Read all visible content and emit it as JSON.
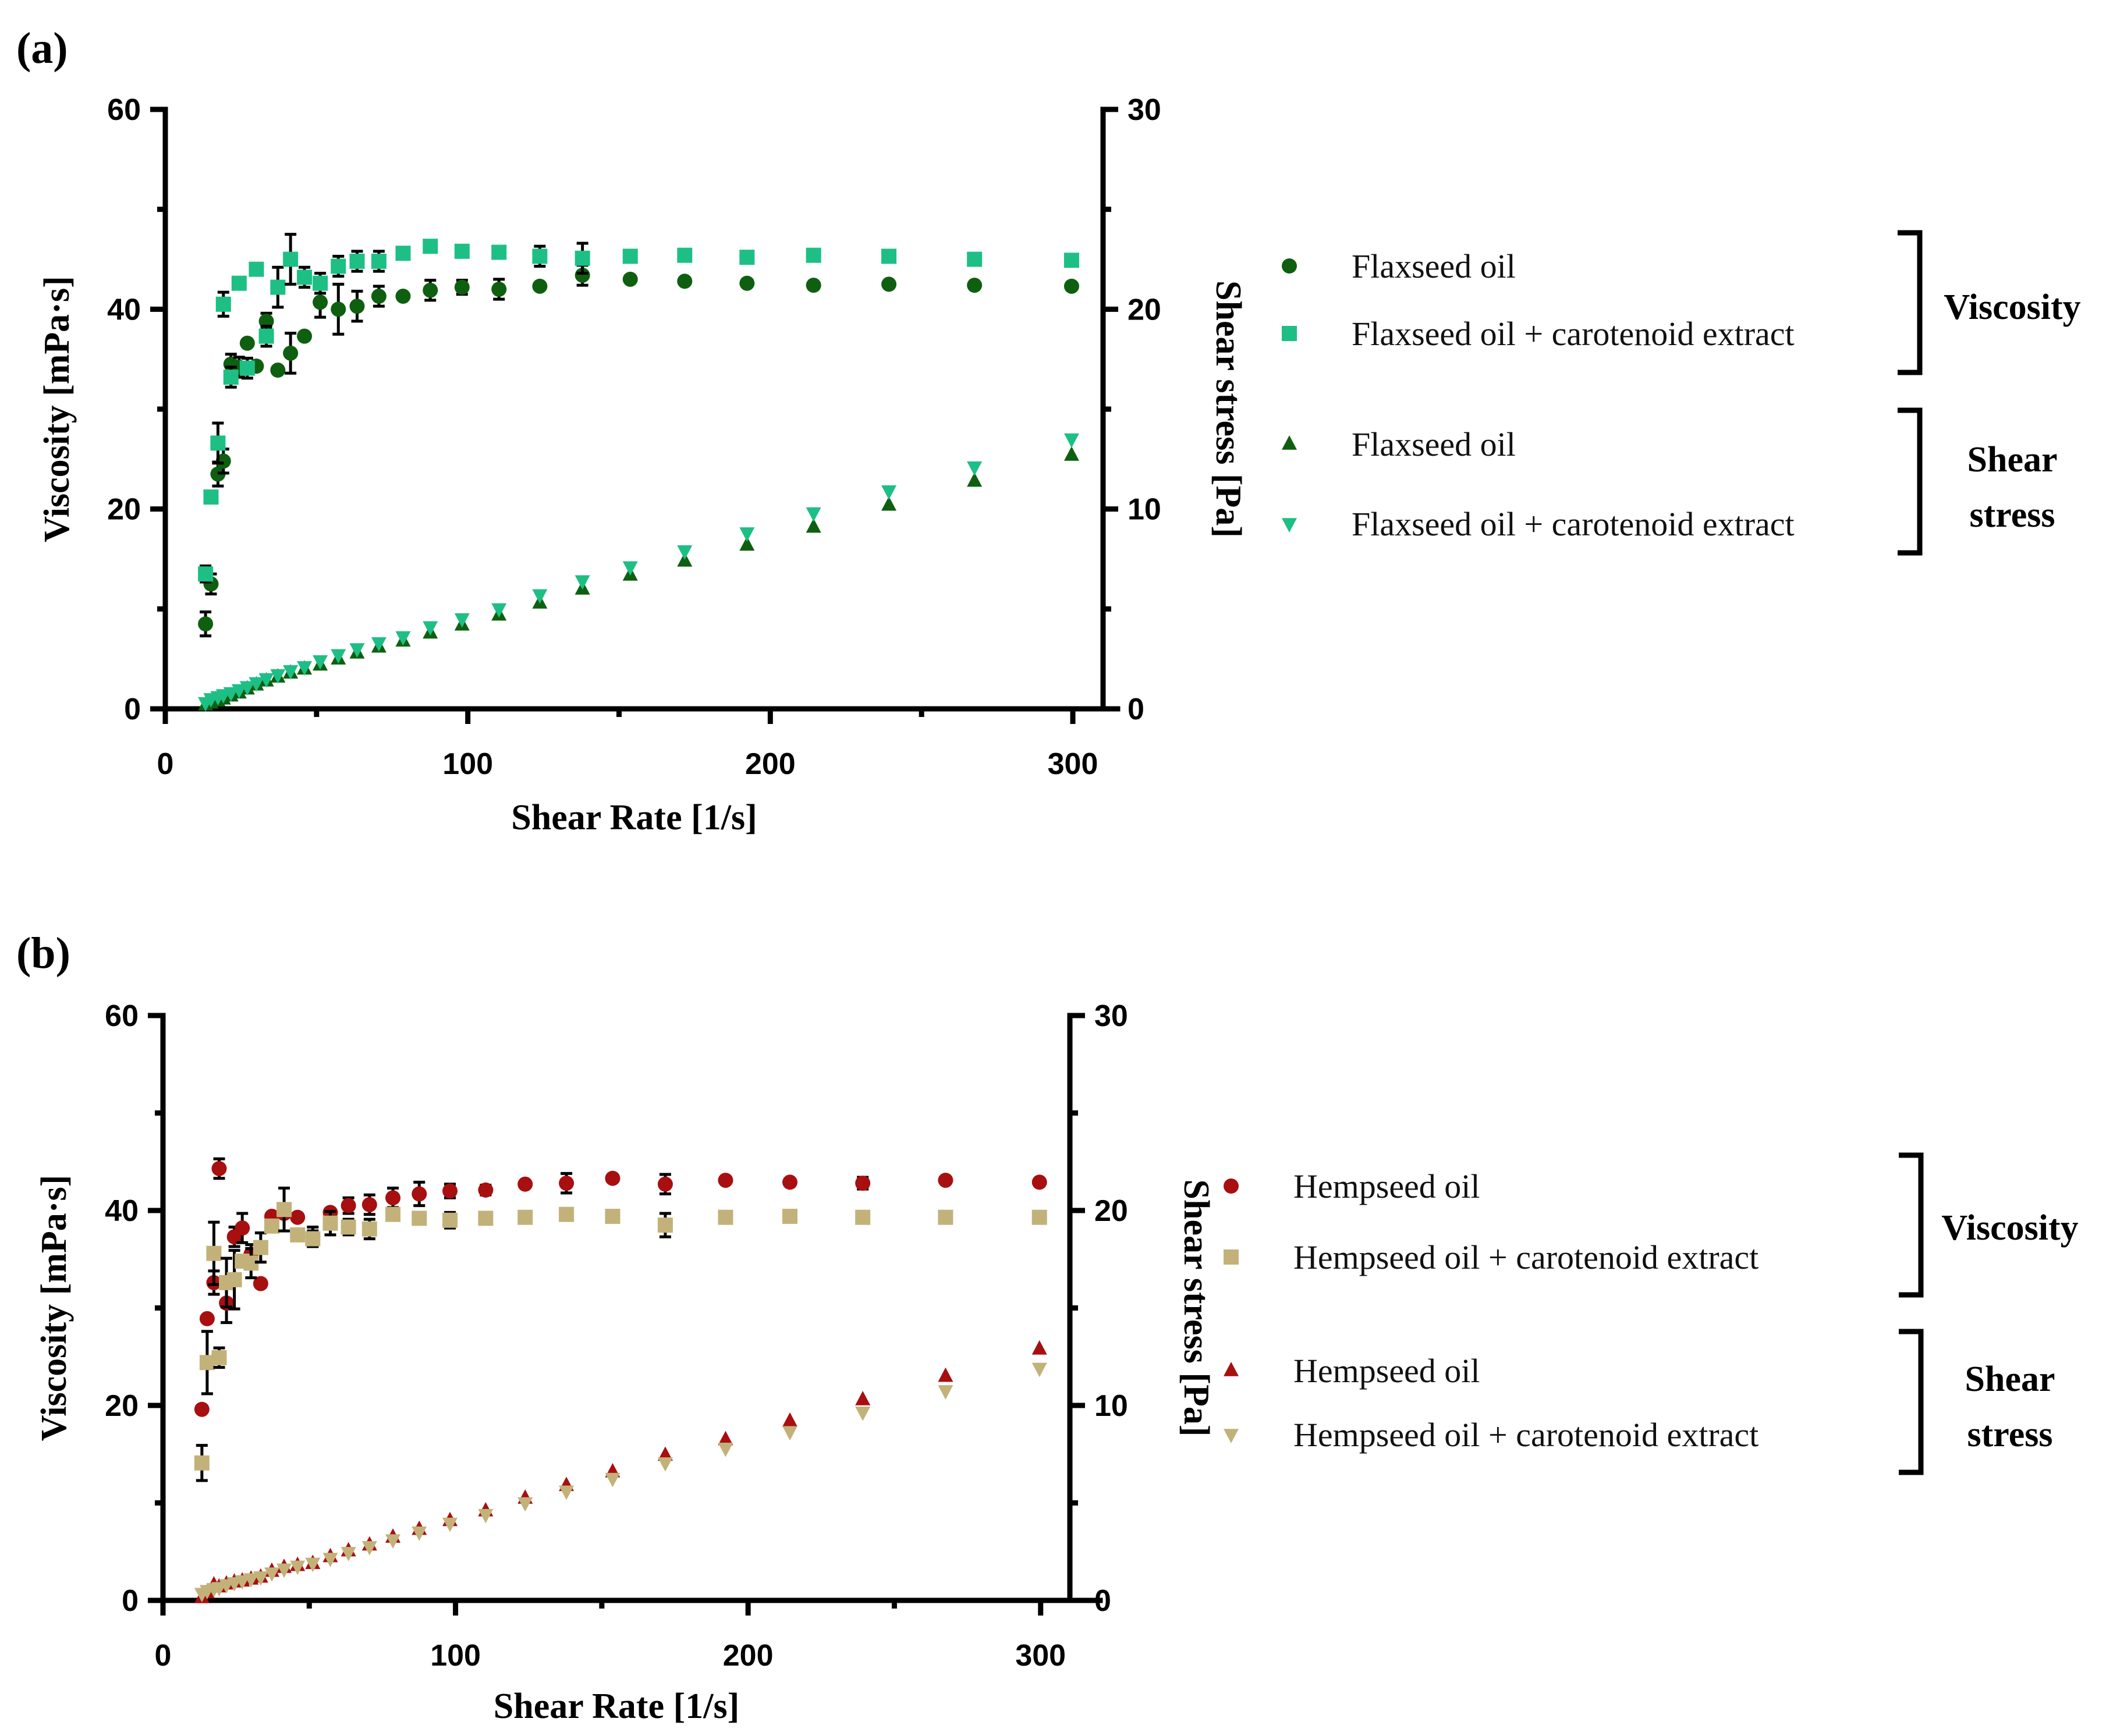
{
  "colors": {
    "flax_oil": "#0f5f10",
    "flax_extract": "#1dbf85",
    "hemp_oil": "#a80f10",
    "hemp_extract": "#c2b27a"
  },
  "chart_data": [
    {
      "type": "scatter",
      "panel_label": "(a)",
      "xlabel": "Shear Rate [1/s]",
      "ylabel": "Viscosity [mPa·s]",
      "y2label": "Shear stress [Pa]",
      "xlim": [
        0,
        310
      ],
      "ylim": [
        0,
        60
      ],
      "y2lim": [
        0,
        30
      ],
      "xticks": [
        "0",
        "100",
        "200",
        "300"
      ],
      "yticks": [
        "0",
        "20",
        "40",
        "60"
      ],
      "y2ticks": [
        "0",
        "10",
        "20",
        "30"
      ],
      "legend": {
        "position": "right",
        "groups": [
          {
            "name": "Viscosity",
            "entries": [
              {
                "label": "Flaxseed oil",
                "marker": "circle",
                "color_key": "flax_oil"
              },
              {
                "label": "Flaxseed oil + carotenoid extract",
                "marker": "square",
                "color_key": "flax_extract"
              }
            ]
          },
          {
            "name": "Shear stress",
            "name_lines": [
              "Shear",
              "stress"
            ],
            "entries": [
              {
                "label": "Flaxseed oil",
                "marker": "triangle-up",
                "color_key": "flax_oil"
              },
              {
                "label": "Flaxseed oil + carotenoid extract",
                "marker": "triangle-down",
                "color_key": "flax_extract"
              }
            ]
          }
        ]
      },
      "series": [
        {
          "name": "Flaxseed oil (viscosity)",
          "axis": "left",
          "marker": "circle",
          "color_key": "flax_oil",
          "x": [
            13.3,
            15.1,
            17.4,
            19.2,
            21.7,
            24.4,
            27.1,
            30.1,
            33.4,
            37.2,
            41.4,
            46,
            51.2,
            57.2,
            63.4,
            70.6,
            78.6,
            87.6,
            98.1,
            110.3,
            123.8,
            137.9,
            153.7,
            171.7,
            192.3,
            214.3,
            239.2,
            267.5,
            299.6
          ],
          "y": [
            8.5,
            12.5,
            23.5,
            24.8,
            34.5,
            34.2,
            36.6,
            34.3,
            38.8,
            33.9,
            35.6,
            37.3,
            40.7,
            40,
            40.3,
            41.3,
            41.3,
            41.9,
            42.2,
            42,
            42.3,
            43.4,
            43,
            42.8,
            42.6,
            42.4,
            42.5,
            42.4,
            42.3
          ],
          "err": [
            1.2,
            1,
            1.2,
            1.2,
            1,
            1,
            0,
            0,
            0.8,
            0,
            2,
            0,
            1.5,
            2.5,
            1.5,
            1,
            0,
            1,
            0.7,
            1,
            0,
            1,
            0,
            0,
            0,
            0,
            0,
            0,
            0
          ]
        },
        {
          "name": "Flaxseed oil + carotenoid extract (viscosity)",
          "axis": "left",
          "marker": "square",
          "color_key": "flax_extract",
          "x": [
            13.3,
            15.1,
            17.4,
            19.2,
            21.7,
            24.4,
            27.1,
            30.1,
            33.4,
            37.2,
            41.4,
            46,
            51.2,
            57.2,
            63.4,
            70.6,
            78.6,
            87.6,
            98.1,
            110.3,
            123.8,
            137.9,
            153.7,
            171.7,
            192.3,
            214.3,
            239.2,
            267.5,
            299.6
          ],
          "y": [
            13.5,
            21.2,
            26.6,
            40.5,
            33.2,
            42.6,
            34.1,
            44,
            37.3,
            42.2,
            45,
            43.2,
            42.6,
            44.3,
            44.8,
            44.8,
            45.6,
            46.3,
            45.8,
            45.7,
            45.3,
            45.1,
            45.3,
            45.4,
            45.2,
            45.4,
            45.3,
            45,
            44.9
          ],
          "err": [
            0.8,
            0,
            2,
            1.2,
            1,
            0,
            1,
            0,
            1,
            2,
            2.5,
            1,
            1,
            1,
            1,
            1,
            0,
            0,
            0,
            0,
            1,
            1.5,
            0,
            0,
            0,
            0,
            0,
            0,
            0
          ]
        },
        {
          "name": "Flaxseed oil (shear stress)",
          "axis": "right",
          "marker": "triangle-up",
          "color_key": "flax_oil",
          "x": [
            13.3,
            15.1,
            17.4,
            19.2,
            21.7,
            24.4,
            27.1,
            30.1,
            33.4,
            37.2,
            41.4,
            46,
            51.2,
            57.2,
            63.4,
            70.6,
            78.6,
            87.6,
            98.1,
            110.3,
            123.8,
            137.9,
            153.7,
            171.7,
            192.3,
            214.3,
            239.2,
            267.5,
            299.6
          ],
          "y": [
            0.2,
            0.3,
            0.4,
            0.5,
            0.65,
            0.8,
            1,
            1.2,
            1.4,
            1.6,
            1.8,
            2,
            2.2,
            2.5,
            2.8,
            3.1,
            3.4,
            3.8,
            4.2,
            4.7,
            5.3,
            6,
            6.7,
            7.4,
            8.2,
            9.1,
            10.2,
            11.4,
            12.7
          ],
          "err": []
        },
        {
          "name": "Flaxseed oil + carotenoid extract (shear stress)",
          "axis": "right",
          "marker": "triangle-down",
          "color_key": "flax_extract",
          "x": [
            13.3,
            15.1,
            17.4,
            19.2,
            21.7,
            24.4,
            27.1,
            30.1,
            33.4,
            37.2,
            41.4,
            46,
            51.2,
            57.2,
            63.4,
            70.6,
            78.6,
            87.6,
            98.1,
            110.3,
            123.8,
            137.9,
            153.7,
            171.7,
            192.3,
            214.3,
            239.2,
            267.5,
            299.6
          ],
          "y": [
            0.3,
            0.5,
            0.6,
            0.7,
            0.8,
            0.95,
            1.1,
            1.3,
            1.5,
            1.7,
            1.9,
            2.1,
            2.4,
            2.7,
            3,
            3.3,
            3.6,
            4.1,
            4.5,
            5,
            5.7,
            6.4,
            7.1,
            7.9,
            8.8,
            9.8,
            10.9,
            12.1,
            13.5
          ],
          "err": []
        }
      ]
    },
    {
      "type": "scatter",
      "panel_label": "(b)",
      "xlabel": "Shear Rate [1/s]",
      "ylabel": "Viscosity [mPa·s]",
      "y2label": "Shear stress [Pa]",
      "xlim": [
        0,
        310
      ],
      "ylim": [
        0,
        60
      ],
      "y2lim": [
        0,
        30
      ],
      "xticks": [
        "0",
        "100",
        "200",
        "300"
      ],
      "yticks": [
        "0",
        "20",
        "40",
        "60"
      ],
      "y2ticks": [
        "0",
        "10",
        "20",
        "30"
      ],
      "legend": {
        "position": "right",
        "groups": [
          {
            "name": "Viscosity",
            "entries": [
              {
                "label": "Hempseed oil",
                "marker": "circle",
                "color_key": "hemp_oil"
              },
              {
                "label": "Hempseed oil + carotenoid extract",
                "marker": "square",
                "color_key": "hemp_extract"
              }
            ]
          },
          {
            "name": "Shear stress",
            "name_lines": [
              "Shear",
              "stress"
            ],
            "entries": [
              {
                "label": "Hempseed oil",
                "marker": "triangle-up",
                "color_key": "hemp_oil"
              },
              {
                "label": "Hempseed oil + carotenoid extract",
                "marker": "triangle-down",
                "color_key": "hemp_extract"
              }
            ]
          }
        ]
      },
      "series": [
        {
          "name": "Hempseed oil (viscosity)",
          "axis": "left",
          "marker": "circle",
          "color_key": "hemp_oil",
          "x": [
            13.3,
            15.1,
            17.4,
            19.2,
            21.7,
            24.4,
            27.1,
            30.1,
            33.4,
            37.2,
            41.4,
            46,
            51.2,
            57.2,
            63.4,
            70.6,
            78.6,
            87.6,
            98.1,
            110.3,
            123.8,
            137.9,
            153.7,
            171.7,
            192.3,
            214.3,
            239.2,
            267.5,
            299.6
          ],
          "y": [
            19.6,
            28.9,
            32.6,
            44.3,
            30.5,
            37.3,
            38.2,
            35.5,
            32.5,
            39.4,
            39.7,
            39.3,
            37.3,
            39.8,
            40.5,
            40.6,
            41.3,
            41.7,
            42,
            42.1,
            42.7,
            42.8,
            43.3,
            42.7,
            43.1,
            42.9,
            42.8,
            43.1,
            42.9
          ],
          "err": [
            0,
            0,
            1.2,
            1,
            2,
            1,
            1.5,
            1,
            0,
            0,
            0,
            0,
            1,
            0,
            0.8,
            1,
            1,
            1.2,
            0.7,
            0.5,
            0,
            1,
            0,
            1,
            0,
            0,
            0.6,
            0,
            0
          ]
        },
        {
          "name": "Hempseed oil + carotenoid extract (viscosity)",
          "axis": "left",
          "marker": "square",
          "color_key": "hemp_extract",
          "x": [
            13.3,
            15.1,
            17.4,
            19.2,
            21.7,
            24.4,
            27.1,
            30.1,
            33.4,
            37.2,
            41.4,
            46,
            51.2,
            57.2,
            63.4,
            70.6,
            78.6,
            87.6,
            98.1,
            110.3,
            123.8,
            137.9,
            153.7,
            171.7,
            192.3,
            214.3,
            239.2,
            267.5,
            299.6
          ],
          "y": [
            14.1,
            24.4,
            35.6,
            24.9,
            32.6,
            32.9,
            34.8,
            34.6,
            36.2,
            38.4,
            40.1,
            37.5,
            37.1,
            38.7,
            38.3,
            38.1,
            39.6,
            39.2,
            39,
            39.2,
            39.3,
            39.6,
            39.4,
            38.5,
            39.3,
            39.4,
            39.3,
            39.3,
            39.3
          ],
          "err": [
            1.8,
            3.2,
            3.2,
            1,
            2.5,
            3,
            0,
            1.5,
            1.5,
            0,
            2.2,
            0,
            0.8,
            1.2,
            0.8,
            1,
            0,
            0,
            0.8,
            0,
            0,
            0,
            0,
            1.2,
            0.6,
            0,
            0,
            0,
            0
          ]
        },
        {
          "name": "Hempseed oil (shear stress)",
          "axis": "right",
          "marker": "triangle-up",
          "color_key": "hemp_oil",
          "x": [
            13.3,
            15.1,
            17.4,
            19.2,
            21.7,
            24.4,
            27.1,
            30.1,
            33.4,
            37.2,
            41.4,
            46,
            51.2,
            57.2,
            63.4,
            70.6,
            78.6,
            87.6,
            98.1,
            110.3,
            123.8,
            137.9,
            153.7,
            171.7,
            192.3,
            214.3,
            239.2,
            267.5,
            299.6
          ],
          "y": [
            0.15,
            0.4,
            0.8,
            0.7,
            0.85,
            0.95,
            1,
            1.1,
            1.2,
            1.5,
            1.7,
            1.8,
            1.9,
            2.25,
            2.55,
            2.85,
            3.25,
            3.65,
            4.1,
            4.6,
            5.25,
            5.9,
            6.6,
            7.45,
            8.25,
            9.2,
            10.3,
            11.5,
            12.9
          ],
          "err": []
        },
        {
          "name": "Hempseed oil + carotenoid extract (shear stress)",
          "axis": "right",
          "marker": "triangle-down",
          "color_key": "hemp_extract",
          "x": [
            13.3,
            15.1,
            17.4,
            19.2,
            21.7,
            24.4,
            27.1,
            30.1,
            33.4,
            37.2,
            41.4,
            46,
            51.2,
            57.2,
            63.4,
            70.6,
            78.6,
            87.6,
            98.1,
            110.3,
            123.8,
            137.9,
            153.7,
            171.7,
            192.3,
            214.3,
            239.2,
            267.5,
            299.6
          ],
          "y": [
            0.35,
            0.5,
            0.6,
            0.65,
            0.8,
            0.9,
            1,
            1.1,
            1.2,
            1.4,
            1.6,
            1.75,
            1.9,
            2.15,
            2.45,
            2.75,
            3.1,
            3.5,
            3.95,
            4.4,
            5,
            5.6,
            6.25,
            7.05,
            7.8,
            8.65,
            9.65,
            10.75,
            11.9
          ],
          "err": []
        }
      ]
    }
  ]
}
